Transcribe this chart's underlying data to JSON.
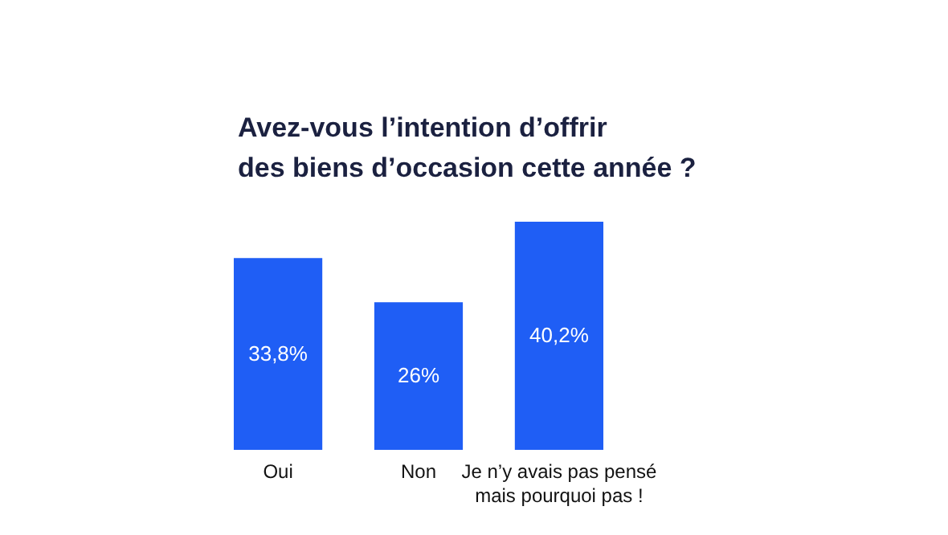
{
  "chart_data": {
    "type": "bar",
    "title": "Avez-vous l’intention d’offrir des biens d’occasion cette année ?",
    "categories": [
      "Oui",
      "Non",
      "Je n’y avais pas pensé mais pourquoi pas !"
    ],
    "values": [
      33.8,
      26,
      40.2
    ],
    "color": "#1f5ef5",
    "value_labels": [
      "33,8%",
      "26%",
      "40,2%"
    ]
  }
}
